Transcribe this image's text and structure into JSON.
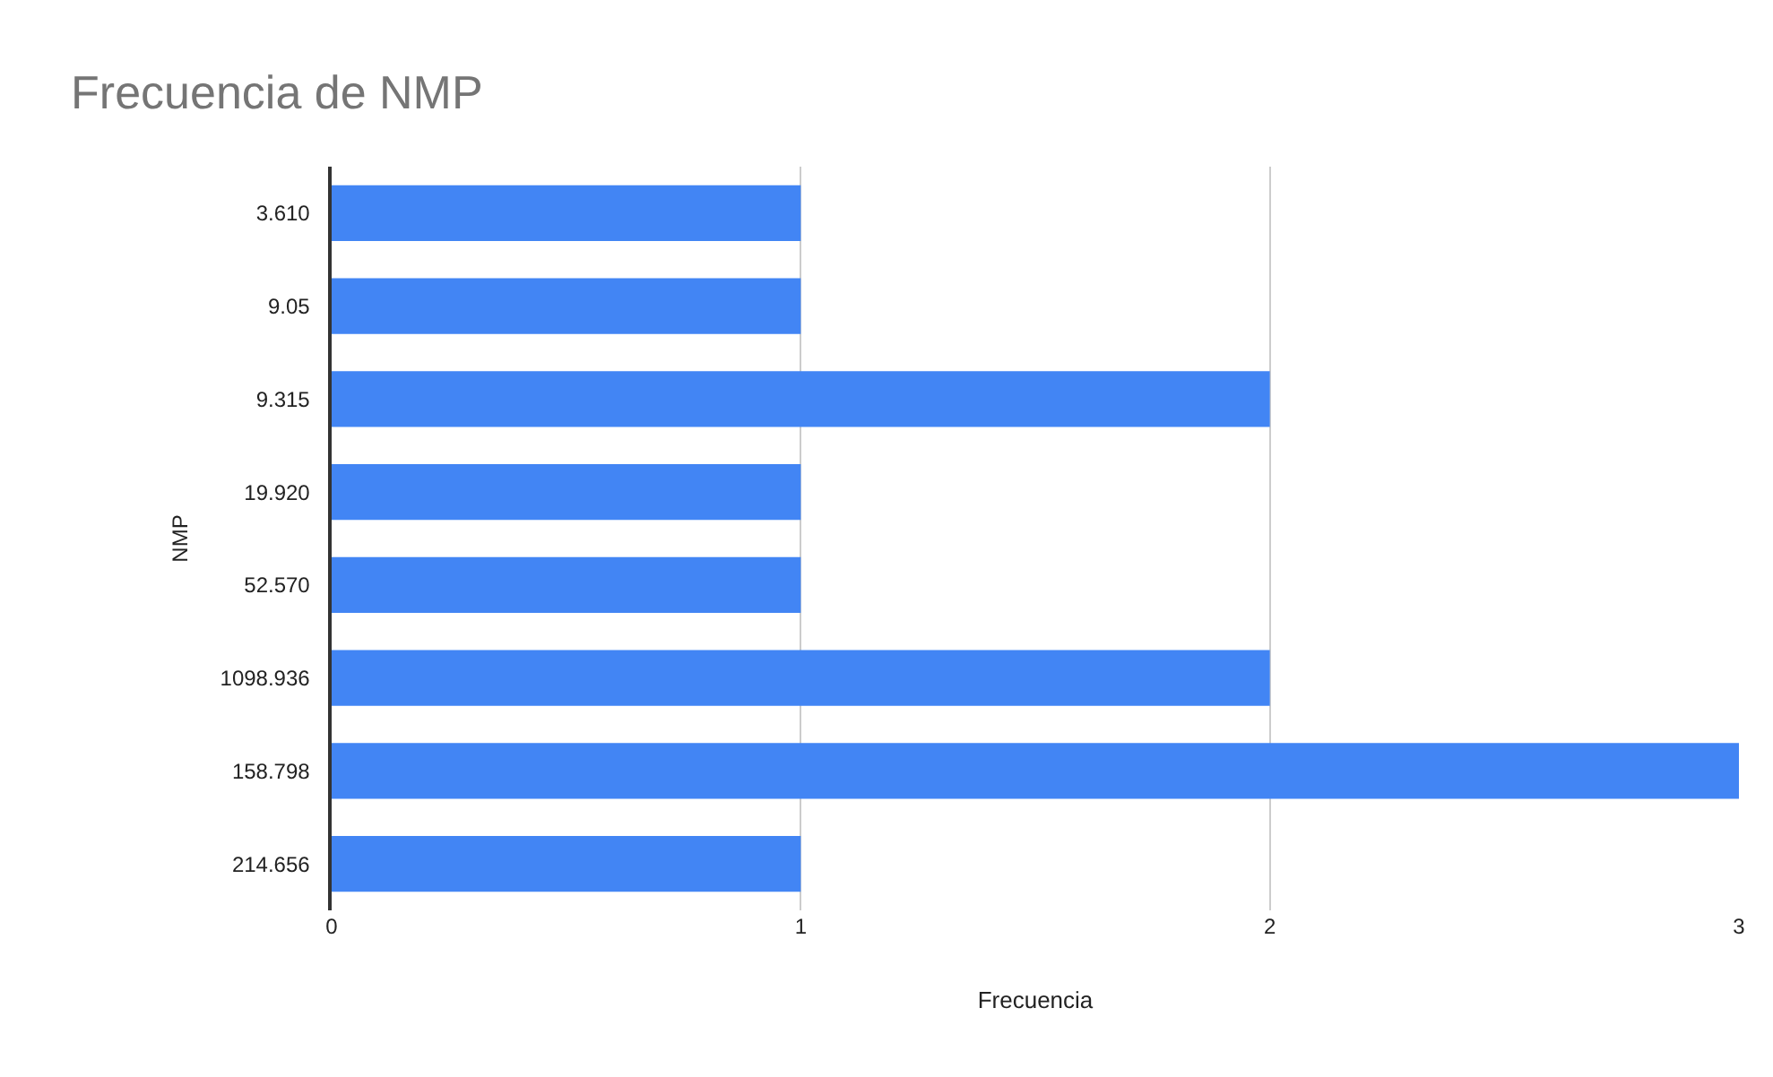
{
  "chart_data": {
    "type": "bar",
    "orientation": "horizontal",
    "title": "Frecuencia de NMP",
    "xlabel": "Frecuencia",
    "ylabel": "NMP",
    "categories": [
      "3.610",
      "9.05",
      "9.315",
      "19.920",
      "52.570",
      "1098.936",
      "158.798",
      "214.656"
    ],
    "values": [
      1,
      1,
      2,
      1,
      1,
      2,
      3,
      1
    ],
    "color": "#4285f4",
    "xlim": [
      0,
      3
    ],
    "xticks": [
      0,
      1,
      2,
      3
    ],
    "grid": "x"
  }
}
